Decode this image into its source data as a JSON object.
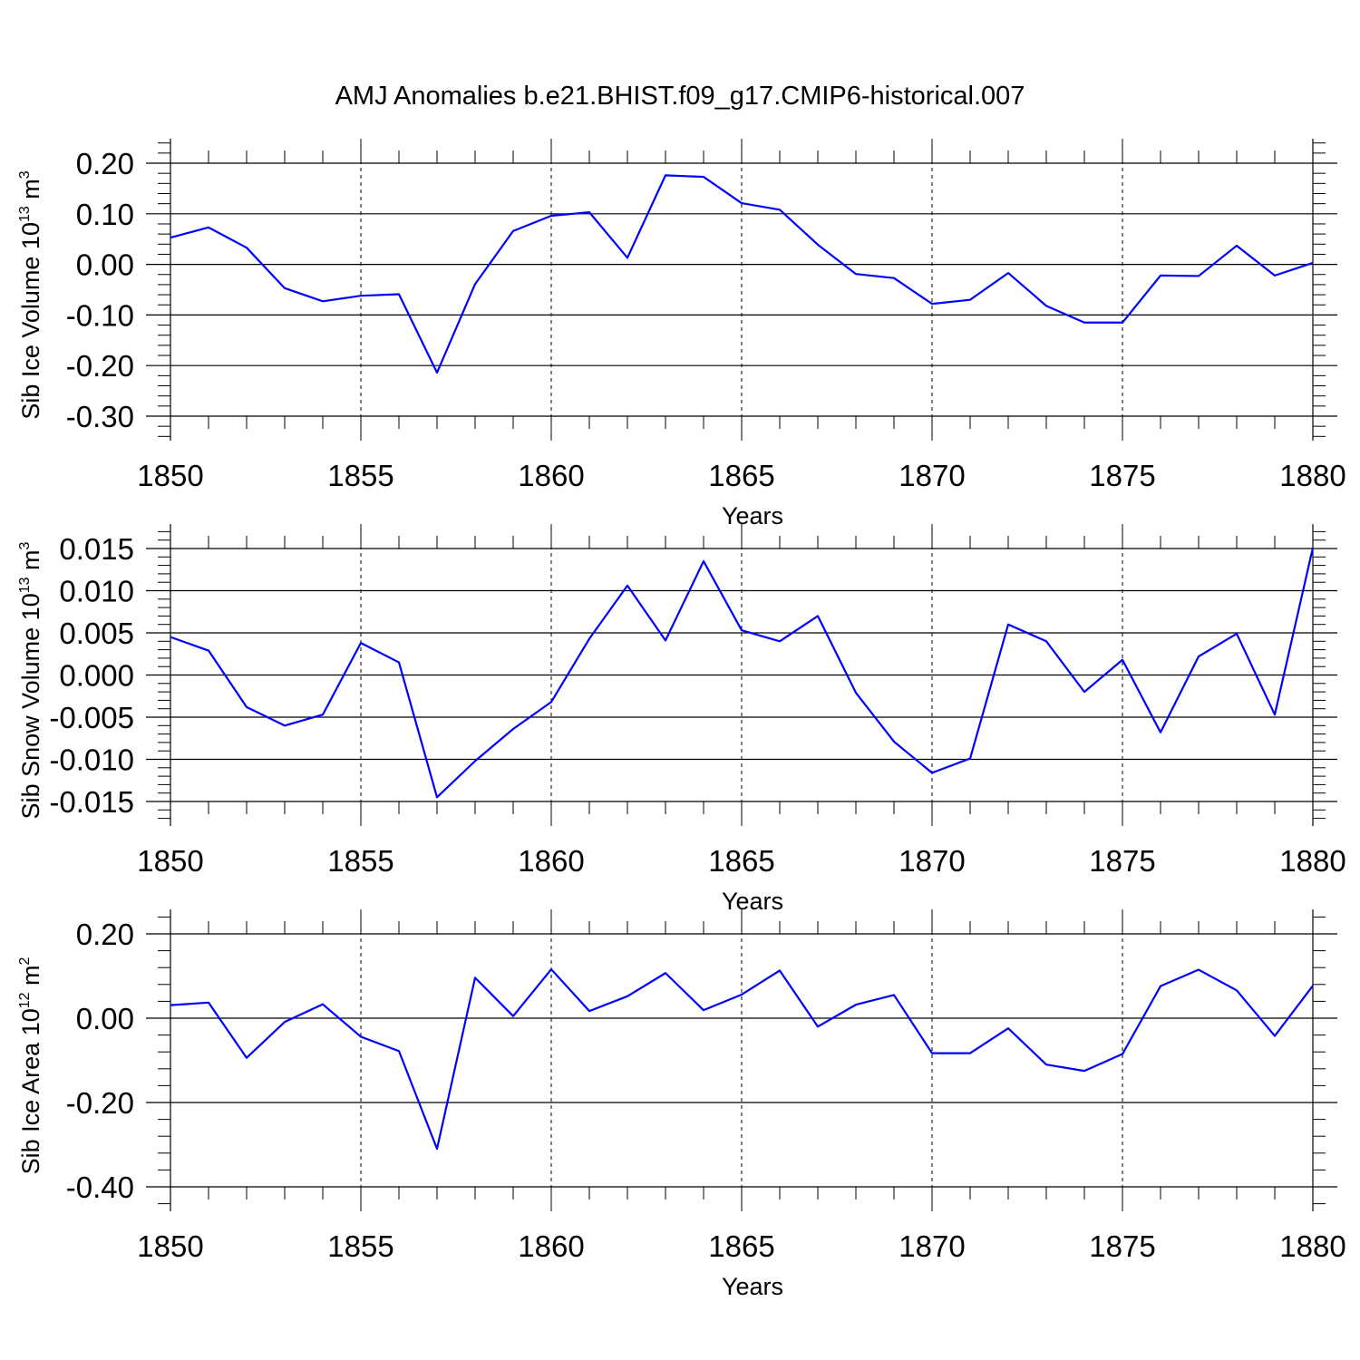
{
  "title": "AMJ Anomalies b.e21.BHIST.f09_g17.CMIP6-historical.007",
  "colors": {
    "line": "#0000ff",
    "axis": "#000000",
    "grid": "#000000"
  },
  "chart_data": [
    {
      "type": "line",
      "ylabel": "Sib Ice Volume 10",
      "ylabel_exp": "13",
      "ylabel_unit": " m",
      "ylabel_unit_exp": "3",
      "xlabel": "Years",
      "xlim": [
        1850,
        1880
      ],
      "ylim": [
        -0.3,
        0.2
      ],
      "yticks": [
        0.2,
        0.1,
        0.0,
        -0.1,
        -0.2,
        -0.3
      ],
      "ytick_labels": [
        "0.20",
        "0.10",
        "0.00",
        "-0.10",
        "-0.20",
        "-0.30"
      ],
      "xticks": [
        1850,
        1855,
        1860,
        1865,
        1870,
        1875,
        1880
      ],
      "xtick_labels": [
        "1850",
        "1855",
        "1860",
        "1865",
        "1870",
        "1875",
        "1880"
      ],
      "x": [
        1850,
        1851,
        1852,
        1853,
        1854,
        1855,
        1856,
        1857,
        1858,
        1859,
        1860,
        1861,
        1862,
        1863,
        1864,
        1865,
        1866,
        1867,
        1868,
        1869,
        1870,
        1871,
        1872,
        1873,
        1874,
        1875,
        1876,
        1877,
        1878,
        1879,
        1880
      ],
      "series": [
        {
          "name": "Sib Ice Volume",
          "values": [
            0.053,
            0.073,
            0.033,
            -0.047,
            -0.073,
            -0.062,
            -0.059,
            -0.214,
            -0.039,
            0.066,
            0.096,
            0.103,
            0.013,
            0.176,
            0.173,
            0.121,
            0.108,
            0.039,
            -0.019,
            -0.027,
            -0.078,
            -0.07,
            -0.017,
            -0.082,
            -0.115,
            -0.115,
            -0.022,
            -0.023,
            0.037,
            -0.022,
            0.003
          ]
        }
      ]
    },
    {
      "type": "line",
      "ylabel": "Sib Snow Volume 10",
      "ylabel_exp": "13",
      "ylabel_unit": " m",
      "ylabel_unit_exp": "3",
      "xlabel": "Years",
      "xlim": [
        1850,
        1880
      ],
      "ylim": [
        -0.015,
        0.015
      ],
      "yticks": [
        0.015,
        0.01,
        0.005,
        0.0,
        -0.005,
        -0.01,
        -0.015
      ],
      "ytick_labels": [
        "0.015",
        "0.010",
        "0.005",
        "0.000",
        "-0.005",
        "-0.010",
        "-0.015"
      ],
      "xticks": [
        1850,
        1855,
        1860,
        1865,
        1870,
        1875,
        1880
      ],
      "xtick_labels": [
        "1850",
        "1855",
        "1860",
        "1865",
        "1870",
        "1875",
        "1880"
      ],
      "x": [
        1850,
        1851,
        1852,
        1853,
        1854,
        1855,
        1856,
        1857,
        1858,
        1859,
        1860,
        1861,
        1862,
        1863,
        1864,
        1865,
        1866,
        1867,
        1868,
        1869,
        1870,
        1871,
        1872,
        1873,
        1874,
        1875,
        1876,
        1877,
        1878,
        1879,
        1880
      ],
      "series": [
        {
          "name": "Sib Snow Volume",
          "values": [
            0.0045,
            0.0029,
            -0.0038,
            -0.006,
            -0.0047,
            0.0038,
            0.0015,
            -0.0145,
            -0.0102,
            -0.0064,
            -0.0032,
            0.0043,
            0.0106,
            0.0041,
            0.0135,
            0.0053,
            0.004,
            0.007,
            -0.0021,
            -0.0079,
            -0.0116,
            -0.0099,
            0.006,
            0.004,
            -0.002,
            0.0018,
            -0.0068,
            0.0022,
            0.0049,
            -0.0047,
            0.0151
          ]
        }
      ]
    },
    {
      "type": "line",
      "ylabel": "Sib Ice Area 10",
      "ylabel_exp": "12",
      "ylabel_unit": " m",
      "ylabel_unit_exp": "2",
      "xlabel": "Years",
      "xlim": [
        1850,
        1880
      ],
      "ylim": [
        -0.4,
        0.2
      ],
      "yticks": [
        0.2,
        0.0,
        -0.2,
        -0.4
      ],
      "ytick_labels": [
        "0.20",
        "0.00",
        "-0.20",
        "-0.40"
      ],
      "xticks": [
        1850,
        1855,
        1860,
        1865,
        1870,
        1875,
        1880
      ],
      "xtick_labels": [
        "1850",
        "1855",
        "1860",
        "1865",
        "1870",
        "1875",
        "1880"
      ],
      "x": [
        1850,
        1851,
        1852,
        1853,
        1854,
        1855,
        1856,
        1857,
        1858,
        1859,
        1860,
        1861,
        1862,
        1863,
        1864,
        1865,
        1866,
        1867,
        1868,
        1869,
        1870,
        1871,
        1872,
        1873,
        1874,
        1875,
        1876,
        1877,
        1878,
        1879,
        1880
      ],
      "series": [
        {
          "name": "Sib Ice Area",
          "values": [
            0.031,
            0.037,
            -0.094,
            -0.009,
            0.033,
            -0.044,
            -0.078,
            -0.31,
            0.096,
            0.005,
            0.116,
            0.017,
            0.052,
            0.107,
            0.019,
            0.056,
            0.113,
            -0.02,
            0.032,
            0.055,
            -0.083,
            -0.083,
            -0.024,
            -0.11,
            -0.125,
            -0.085,
            0.076,
            0.115,
            0.066,
            -0.042,
            0.077
          ]
        }
      ]
    }
  ]
}
